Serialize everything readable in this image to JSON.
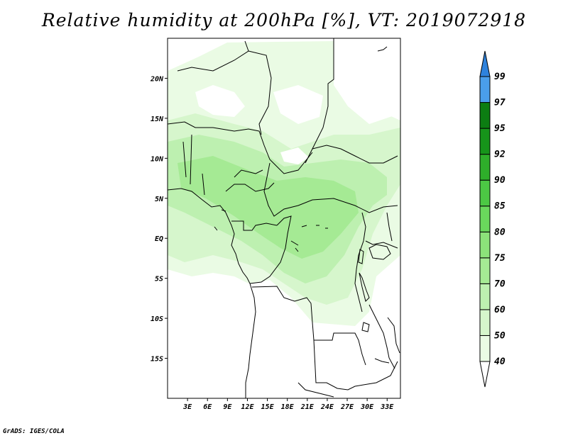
{
  "title": "Relative humidity at 200hPa [%], VT: 2019072918",
  "credit": "GrADS: IGES/COLA",
  "chart_data": {
    "type": "heatmap",
    "variable": "Relative humidity",
    "level": "200hPa",
    "unit": "%",
    "valid_time": "2019072918",
    "lon_range": [
      0,
      35
    ],
    "lat_range": [
      -20,
      25
    ],
    "lon_ticks": [
      "3E",
      "6E",
      "9E",
      "12E",
      "15E",
      "18E",
      "21E",
      "24E",
      "27E",
      "30E",
      "33E"
    ],
    "lon_values": [
      3,
      6,
      9,
      12,
      15,
      18,
      21,
      24,
      27,
      30,
      33
    ],
    "lat_ticks": [
      "20N",
      "15N",
      "10N",
      "5N",
      "EQ",
      "5S",
      "10S",
      "15S"
    ],
    "lat_values": [
      20,
      15,
      10,
      5,
      0,
      -5,
      -10,
      -15
    ],
    "colorbar": {
      "levels": [
        "40",
        "50",
        "60",
        "70",
        "75",
        "80",
        "85",
        "90",
        "92",
        "95",
        "97",
        "99"
      ],
      "colors": [
        "#ffffff",
        "#eafbe4",
        "#d6f6cc",
        "#bdf0b0",
        "#a5ea94",
        "#8ce27a",
        "#6ad85c",
        "#4cc844",
        "#2eae2a",
        "#16941a",
        "#0c7d12",
        "#4a9eea",
        "#2e82dc",
        "#1c66c6"
      ],
      "extend": "both",
      "grid": false
    }
  }
}
